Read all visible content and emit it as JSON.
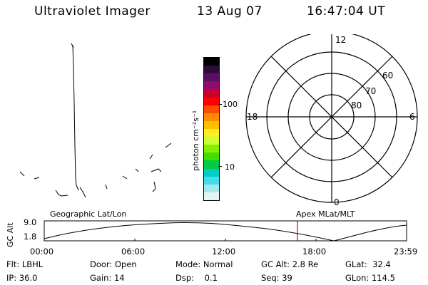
{
  "header": {
    "title": "Ultraviolet Imager",
    "date": "13 Aug 07",
    "time": "16:47:04 UT"
  },
  "colorbar": {
    "unit_label": "photon cm⁻²s⁻¹",
    "tick_labels": [
      "100",
      "10"
    ],
    "colors": [
      "#000000",
      "#2a0d3b",
      "#5a0f64",
      "#900b6a",
      "#c8002a",
      "#ff0000",
      "#ff4a00",
      "#ff8c00",
      "#ffbf00",
      "#ffee22",
      "#ccff33",
      "#88ee00",
      "#44dd00",
      "#00cc44",
      "#00cccc",
      "#44ddee",
      "#a5e7ee",
      "#e8f4f4"
    ]
  },
  "polar_plot": {
    "lat_labels": [
      "60",
      "70",
      "80"
    ],
    "mlt_labels": {
      "top": "12",
      "left": "18",
      "right": "6",
      "bottom": "0"
    }
  },
  "orbit_plot": {
    "y_axis_label": "GC Alt",
    "y_ticks": [
      "9.0",
      "1.8"
    ],
    "left_title": "Geographic Lat/Lon",
    "right_title": "Apex MLat/MLT",
    "x_ticks": [
      "00:00",
      "06:00",
      "12:00",
      "18:00",
      "23:59"
    ],
    "current_time_marker_color": "#d00000"
  },
  "status": {
    "row1": [
      {
        "label": "Flt:",
        "value": "LBHL"
      },
      {
        "label": "Door:",
        "value": "Open"
      },
      {
        "label": "Mode:",
        "value": "Normal"
      },
      {
        "label": "GC Alt:",
        "value": "2.8 Re"
      },
      {
        "label": "GLat:",
        "value": "32.4"
      }
    ],
    "row2": [
      {
        "label": "IP:",
        "value": "36.0"
      },
      {
        "label": "Gain:",
        "value": "14"
      },
      {
        "label": "Dsp:",
        "value": "0.1"
      },
      {
        "label": "Seq:",
        "value": "39"
      },
      {
        "label": "GLon:",
        "value": "114.5"
      }
    ]
  }
}
